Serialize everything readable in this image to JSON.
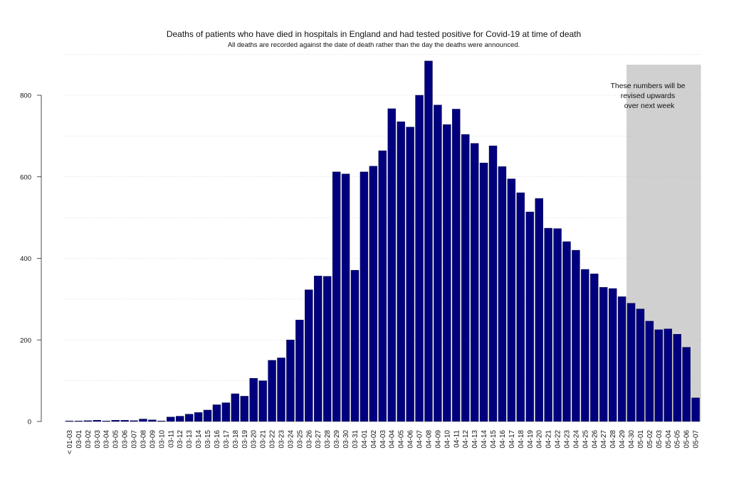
{
  "chart_data": {
    "type": "bar",
    "title": "Deaths of patients who have died in hospitals in England and had tested positive for Covid-19 at time of death",
    "subtitle": "All deaths are recorded against the date of death rather than the day the deaths were announced.",
    "xlabel": "",
    "ylabel": "",
    "ylim": [
      0,
      880
    ],
    "yticks": [
      0,
      200,
      400,
      600,
      800
    ],
    "grid": true,
    "bar_color": "#00007f",
    "shade_color": "#d0d0d0",
    "annotation": "These numbers will be revised upwards over next week",
    "annotation_lines": [
      "These numbers will be",
      "revised upwards",
      "over next week"
    ],
    "shaded_from": "04-30",
    "categories": [
      "< 01-03",
      "03-01",
      "03-02",
      "03-03",
      "03-04",
      "03-05",
      "03-06",
      "03-07",
      "03-08",
      "03-09",
      "03-10",
      "03-11",
      "03-12",
      "03-13",
      "03-14",
      "03-15",
      "03-16",
      "03-17",
      "03-18",
      "03-19",
      "03-20",
      "03-21",
      "03-22",
      "03-23",
      "03-24",
      "03-25",
      "03-26",
      "03-27",
      "03-28",
      "03-29",
      "03-30",
      "03-31",
      "04-01",
      "04-02",
      "04-03",
      "04-04",
      "04-05",
      "04-06",
      "04-07",
      "04-08",
      "04-09",
      "04-10",
      "04-11",
      "04-12",
      "04-13",
      "04-14",
      "04-15",
      "04-16",
      "04-17",
      "04-18",
      "04-19",
      "04-20",
      "04-21",
      "04-22",
      "04-23",
      "04-24",
      "04-25",
      "04-26",
      "04-27",
      "04-28",
      "04-29",
      "04-30",
      "05-01",
      "05-02",
      "05-03",
      "05-04",
      "05-05",
      "05-06",
      "05-07"
    ],
    "values": [
      1,
      1,
      2,
      3,
      1,
      3,
      3,
      2,
      6,
      4,
      1,
      11,
      13,
      18,
      22,
      28,
      41,
      46,
      68,
      62,
      106,
      100,
      150,
      156,
      200,
      249,
      323,
      357,
      356,
      612,
      607,
      371,
      612,
      626,
      664,
      767,
      735,
      722,
      800,
      884,
      776,
      728,
      766,
      704,
      682,
      634,
      676,
      625,
      595,
      561,
      514,
      547,
      474,
      473,
      441,
      420,
      373,
      362,
      329,
      326,
      306,
      290,
      276,
      246,
      225,
      227,
      214,
      182,
      58
    ]
  }
}
